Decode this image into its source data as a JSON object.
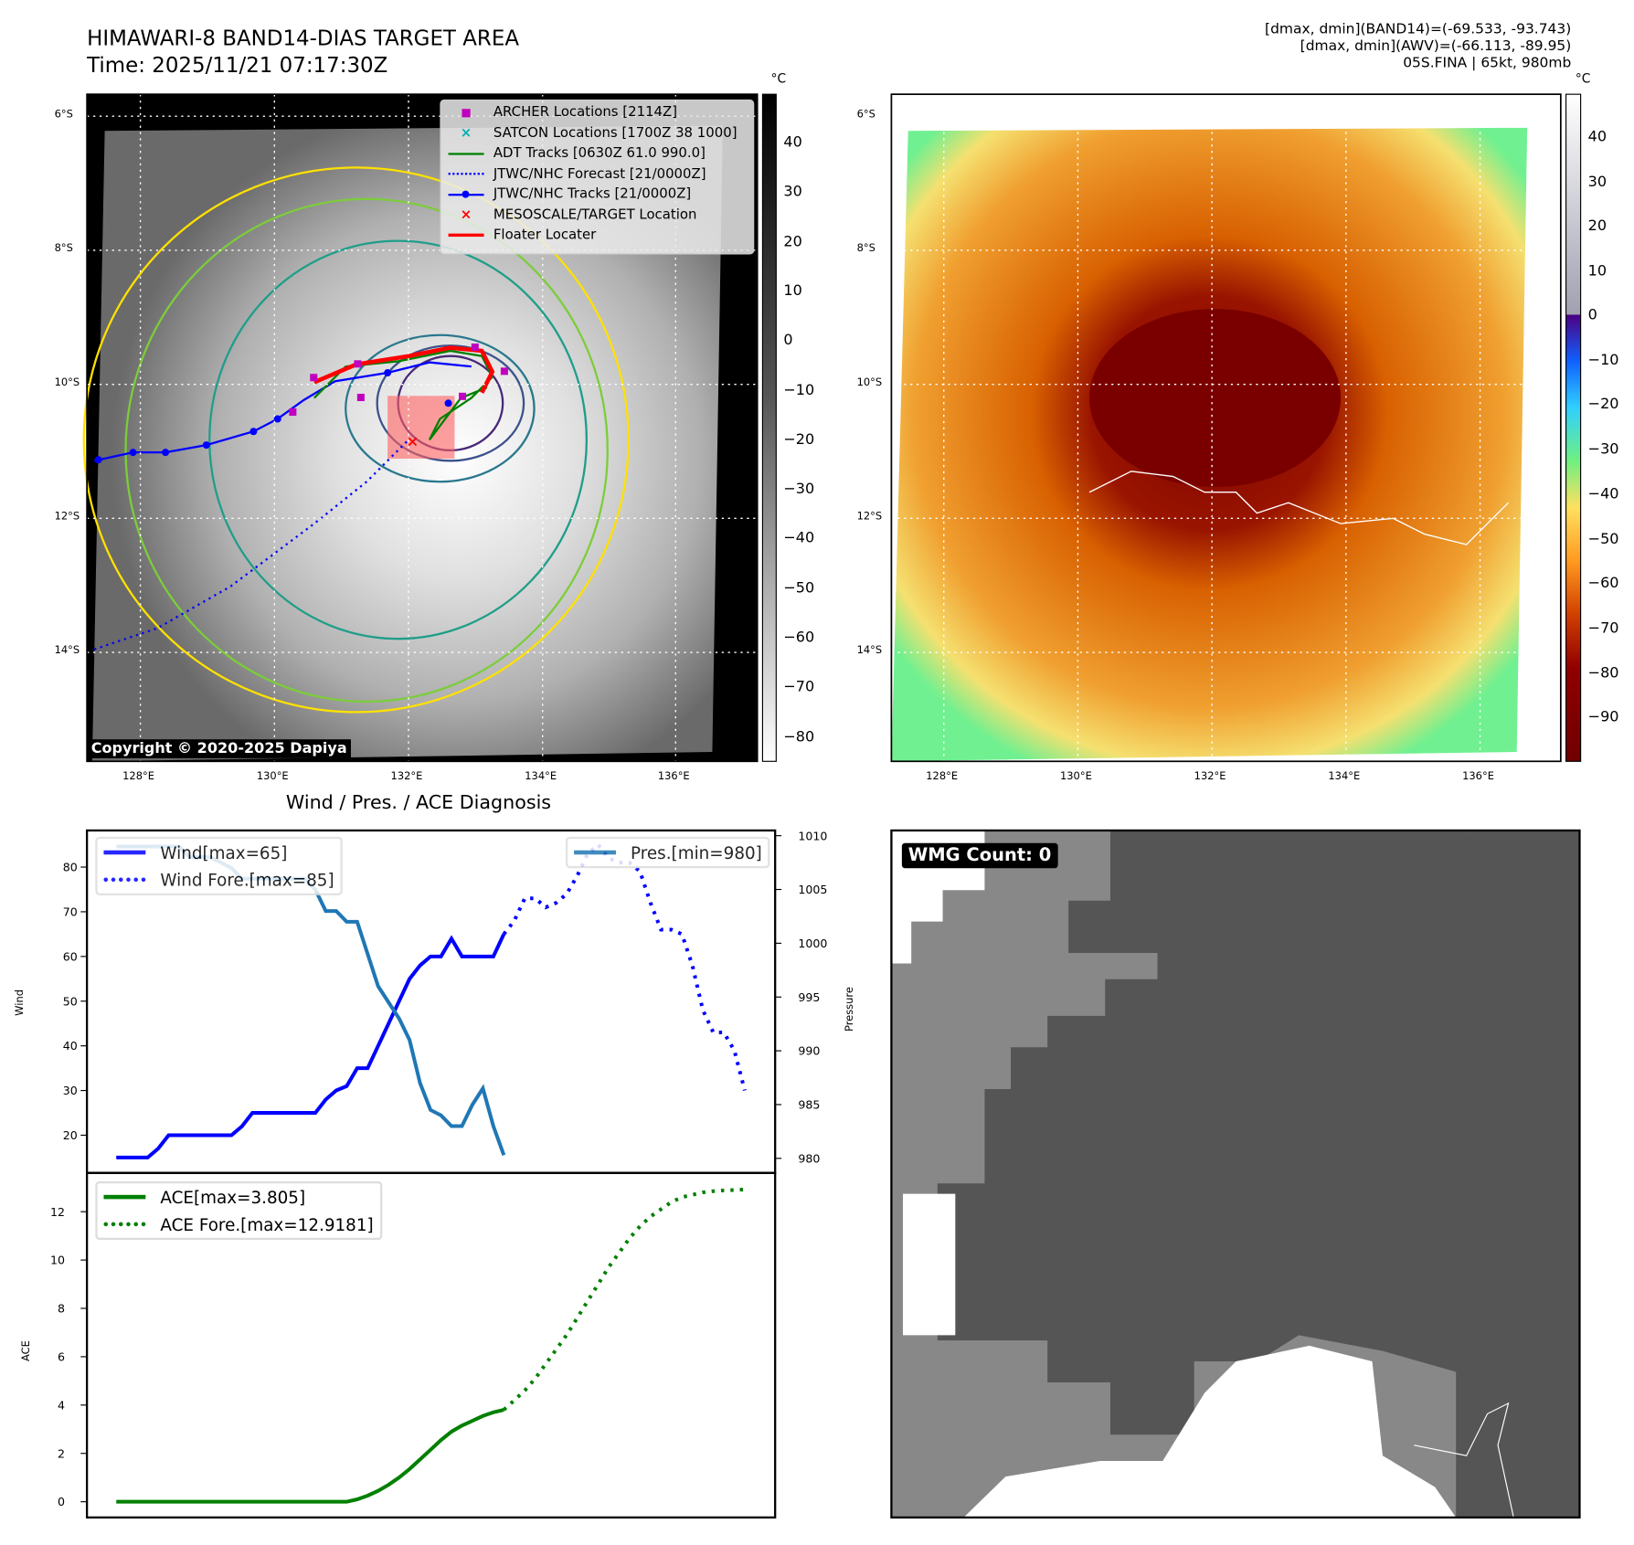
{
  "header": {
    "title": "HIMAWARI-8 BAND14-DIAS TARGET AREA",
    "time": "Time: 2025/11/21 07:17:30Z",
    "info_lines": [
      "[dmax, dmin](BAND14)=(-69.533, -93.743)",
      "[dmax, dmin](AWV)=(-66.113, -89.95)",
      "05S.FINA | 65kt, 980mb"
    ]
  },
  "map": {
    "lat_labels": [
      "6°S",
      "8°S",
      "10°S",
      "12°S",
      "14°S"
    ],
    "lon_labels": [
      "128°E",
      "130°E",
      "132°E",
      "134°E",
      "136°E"
    ],
    "copyright": "Copyright © 2020-2025 Dapiya",
    "unit": "°C",
    "legend": [
      {
        "label": "ARCHER Locations [2114Z]",
        "color": "#c000c0",
        "icon": "square-marker"
      },
      {
        "label": "SATCON Locations [1700Z 38 1000]",
        "color": "#00b0b0",
        "icon": "x-marker"
      },
      {
        "label": "ADT Tracks [0630Z 61.0 990.0]",
        "color": "#008000",
        "icon": "line"
      },
      {
        "label": "JTWC/NHC Forecast [21/0000Z]",
        "color": "#0000ff",
        "icon": "dotted-line"
      },
      {
        "label": "JTWC/NHC Tracks [21/0000Z]",
        "color": "#0000ff",
        "icon": "line-dot"
      },
      {
        "label": "MESOSCALE/TARGET Location",
        "color": "#ff0000",
        "icon": "x-marker"
      },
      {
        "label": "Floater Locater",
        "color": "#ff0000",
        "icon": "line"
      }
    ],
    "gray_cbar_ticks": [
      "40",
      "30",
      "20",
      "10",
      "0",
      "−10",
      "−20",
      "−30",
      "−40",
      "−50",
      "−60",
      "−70",
      "−80"
    ],
    "color_cbar_ticks": [
      "40",
      "30",
      "20",
      "10",
      "0",
      "−10",
      "−20",
      "−30",
      "−40",
      "−50",
      "−60",
      "−70",
      "−80",
      "−90"
    ]
  },
  "wmg": {
    "label": "WMG Count: 0"
  },
  "chart_data": [
    {
      "type": "line",
      "title": "Wind / Pres. / ACE Diagnosis",
      "ylabel": "Wind",
      "y2label": "Pressure",
      "ylim": [
        12,
        88
      ],
      "y2lim": [
        978.5,
        1010.5
      ],
      "yticks": [
        "20",
        "30",
        "40",
        "50",
        "60",
        "70",
        "80"
      ],
      "y2ticks": [
        "980",
        "985",
        "990",
        "995",
        "1000",
        "1005",
        "1010"
      ],
      "legend_left": [
        "Wind[max=65]",
        "Wind Fore.[max=85]"
      ],
      "legend_right": [
        "Pres.[min=980]"
      ],
      "series": [
        {
          "name": "Wind",
          "color": "#0000ff",
          "style": "solid",
          "x0": 0,
          "values": [
            15,
            15,
            15,
            15,
            17,
            20,
            20,
            20,
            20,
            20,
            20,
            20,
            22,
            25,
            25,
            25,
            25,
            25,
            25,
            25,
            28,
            30,
            31,
            35,
            35,
            40,
            45,
            50,
            55,
            58,
            60,
            60,
            64,
            60,
            60,
            60,
            60,
            65
          ]
        },
        {
          "name": "Wind Fore.",
          "color": "#0000ff",
          "style": "dotted",
          "x0": 37,
          "values": [
            65,
            68,
            73,
            73,
            71,
            72,
            74,
            78,
            83,
            85,
            82,
            81,
            81,
            79,
            72,
            66,
            66,
            65,
            58,
            48,
            43,
            43,
            39,
            30
          ]
        },
        {
          "name": "Pres.",
          "color": "#1f77b4",
          "style": "solid",
          "axis": "right",
          "x0": 0,
          "values": [
            1009,
            1009,
            1009,
            1009,
            1009,
            1009,
            1009,
            1008,
            1008,
            1008,
            1007.5,
            1007,
            1006,
            1006,
            1006,
            1006,
            1006,
            1006,
            1006,
            1005,
            1003,
            1003,
            1002,
            1002,
            999,
            996,
            994.5,
            993,
            991,
            987,
            984.5,
            984,
            983,
            983,
            985,
            986.5,
            983,
            980.3
          ]
        }
      ]
    },
    {
      "type": "line",
      "ylabel": "ACE",
      "ylim": [
        -0.6,
        13.6
      ],
      "yticks": [
        "0",
        "2",
        "4",
        "6",
        "8",
        "10",
        "12"
      ],
      "legend": [
        "ACE[max=3.805]",
        "ACE Fore.[max=12.9181]"
      ],
      "series": [
        {
          "name": "ACE",
          "color": "#008000",
          "style": "solid",
          "x0": 0,
          "values": [
            0,
            0,
            0,
            0,
            0,
            0,
            0,
            0,
            0,
            0,
            0,
            0,
            0,
            0,
            0,
            0,
            0,
            0,
            0,
            0,
            0,
            0,
            0,
            0.1,
            0.25,
            0.45,
            0.7,
            1.0,
            1.35,
            1.75,
            2.15,
            2.55,
            2.9,
            3.15,
            3.35,
            3.55,
            3.7,
            3.805
          ]
        },
        {
          "name": "ACE Fore.",
          "color": "#008000",
          "style": "dotted",
          "x0": 37,
          "values": [
            3.805,
            4.2,
            4.6,
            5.1,
            5.7,
            6.3,
            6.9,
            7.6,
            8.3,
            9.0,
            9.7,
            10.3,
            10.9,
            11.4,
            11.8,
            12.1,
            12.4,
            12.6,
            12.7,
            12.8,
            12.85,
            12.88,
            12.9,
            12.92
          ]
        }
      ]
    }
  ]
}
